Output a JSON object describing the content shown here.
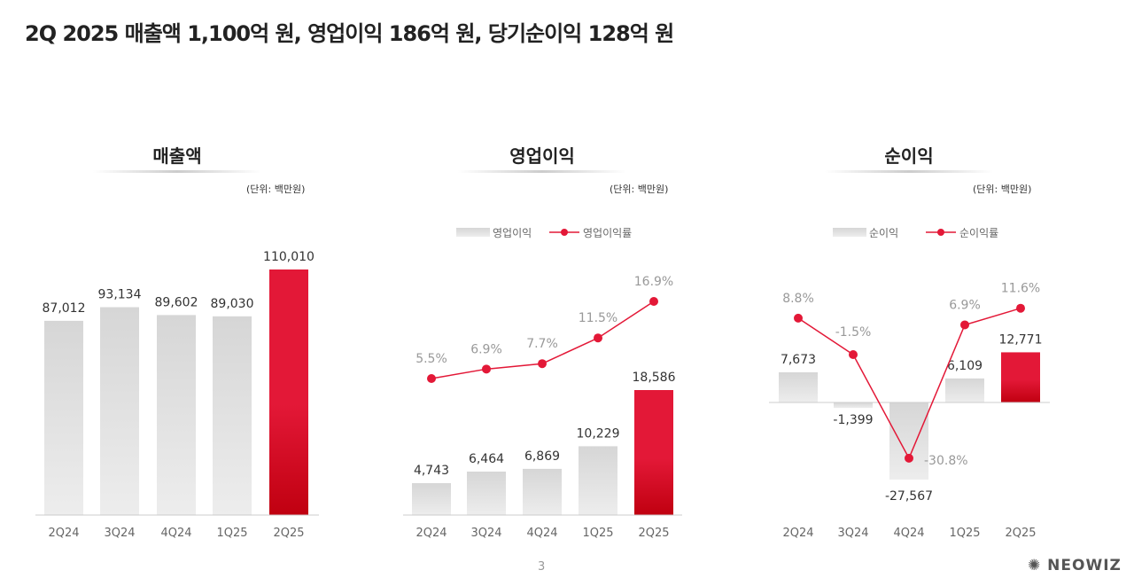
{
  "title": "2Q 2025  매출액 1,100억 원, 영업이익 186억 원, 당기순이익 128억 원",
  "page_number": "3",
  "logo": "NEOWIZ",
  "colors": {
    "highlight": "#e31837",
    "bar": "#d9d9d9",
    "line": "#e31837"
  },
  "chart_data": [
    {
      "type": "bar",
      "title": "매출액",
      "unit": "(단위: 백만원)",
      "categories": [
        "2Q24",
        "3Q24",
        "4Q24",
        "1Q25",
        "2Q25"
      ],
      "values": [
        87012,
        93134,
        89602,
        89030,
        110010
      ],
      "labels": [
        "87,012",
        "93,134",
        "89,602",
        "89,030",
        "110,010"
      ]
    },
    {
      "type": "bar+line",
      "title": "영업이익",
      "unit": "(단위: 백만원)",
      "categories": [
        "2Q24",
        "3Q24",
        "4Q24",
        "1Q25",
        "2Q25"
      ],
      "series": [
        {
          "name": "영업이익",
          "type": "bar",
          "values": [
            4743,
            6464,
            6869,
            10229,
            18586
          ],
          "labels": [
            "4,743",
            "6,464",
            "6,869",
            "10,229",
            "18,586"
          ]
        },
        {
          "name": "영업이익률",
          "type": "line",
          "values": [
            5.5,
            6.9,
            7.7,
            11.5,
            16.9
          ],
          "labels": [
            "5.5%",
            "6.9%",
            "7.7%",
            "11.5%",
            "16.9%"
          ]
        }
      ]
    },
    {
      "type": "bar+line",
      "title": "순이익",
      "unit": "(단위: 백만원)",
      "categories": [
        "2Q24",
        "3Q24",
        "4Q24",
        "1Q25",
        "2Q25"
      ],
      "series": [
        {
          "name": "순이익",
          "type": "bar",
          "values": [
            7673,
            -1399,
            -27567,
            6109,
            12771
          ],
          "labels": [
            "7,673",
            "-1,399",
            "-27,567",
            "6,109",
            "12,771"
          ]
        },
        {
          "name": "순이익률",
          "type": "line",
          "values": [
            8.8,
            -1.5,
            -30.8,
            6.9,
            11.6
          ],
          "labels": [
            "8.8%",
            "-1.5%",
            "-30.8%",
            "6.9%",
            "11.6%"
          ]
        }
      ]
    }
  ]
}
